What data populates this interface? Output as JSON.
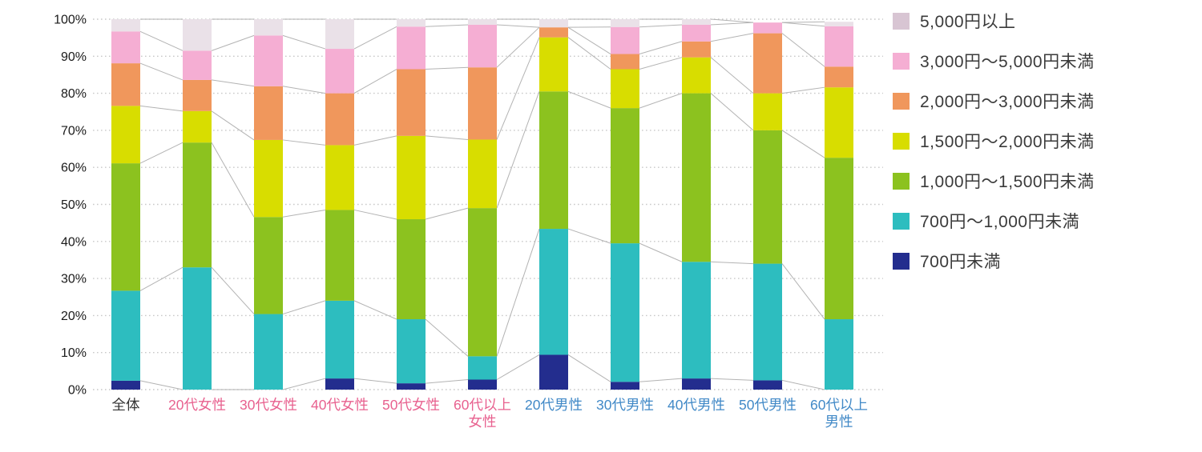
{
  "chart_data": {
    "type": "bar",
    "subtype": "stacked-100-percent",
    "title": "",
    "xlabel": "",
    "ylabel": "",
    "ylim": [
      0,
      100
    ],
    "grid": "dotted horizontal lines every 10%",
    "legend_position": "right",
    "y_ticks": [
      "0%",
      "10%",
      "20%",
      "30%",
      "40%",
      "50%",
      "60%",
      "70%",
      "80%",
      "90%",
      "100%"
    ],
    "categories": [
      "全体",
      "20代女性",
      "30代女性",
      "40代女性",
      "50代女性",
      "60代以上\n女性",
      "20代男性",
      "30代男性",
      "40代男性",
      "50代男性",
      "60代以上\n男性"
    ],
    "category_colors": [
      "#333333",
      "#e8618f",
      "#e8618f",
      "#e8618f",
      "#e8618f",
      "#e8618f",
      "#4189c7",
      "#4189c7",
      "#4189c7",
      "#4189c7",
      "#4189c7"
    ],
    "series": [
      {
        "name": "700円未満",
        "color": "#232d8e",
        "values": [
          2.4,
          0,
          0,
          3.0,
          1.7,
          2.7,
          9.4,
          2.1,
          3.0,
          2.5,
          0
        ]
      },
      {
        "name": "700円〜1,000円未満",
        "color": "#2dbdbf",
        "values": [
          24.3,
          33.0,
          20.4,
          21.0,
          17.3,
          6.3,
          34.0,
          37.4,
          31.5,
          31.5,
          19.0
        ]
      },
      {
        "name": "1,000円〜1,500円未満",
        "color": "#8cc21f",
        "values": [
          34.4,
          33.7,
          26.2,
          24.5,
          27.0,
          40.0,
          37.1,
          36.5,
          45.5,
          36.0,
          43.6
        ]
      },
      {
        "name": "1,500円〜2,000円未満",
        "color": "#d8dd00",
        "values": [
          15.5,
          8.5,
          20.8,
          17.5,
          22.5,
          18.5,
          14.6,
          10.5,
          9.7,
          10.0,
          19.0
        ]
      },
      {
        "name": "2,000円〜3,000円未満",
        "color": "#f0975c",
        "values": [
          11.5,
          8.4,
          14.5,
          14.0,
          18.0,
          19.5,
          2.7,
          4.1,
          4.3,
          16.2,
          5.6
        ]
      },
      {
        "name": "3,000円〜5,000円未満",
        "color": "#f5aed3",
        "values": [
          8.6,
          7.9,
          13.7,
          12.0,
          11.5,
          11.5,
          0,
          7.3,
          4.5,
          2.9,
          10.9
        ]
      },
      {
        "name": "5,000円以上",
        "color": "#eae1e8",
        "legend_color": "#d8c5d3",
        "values": [
          3.3,
          8.5,
          4.4,
          8.0,
          2.0,
          1.5,
          2.2,
          2.1,
          1.5,
          0,
          1.2
        ]
      }
    ],
    "colors": {
      "gridline": "#c9c9c9",
      "connector_line": "#b3b3b3",
      "axis_text": "#1a1a1a",
      "female_label": "#e8618f",
      "male_label": "#4189c7",
      "overall_label": "#333333"
    }
  }
}
